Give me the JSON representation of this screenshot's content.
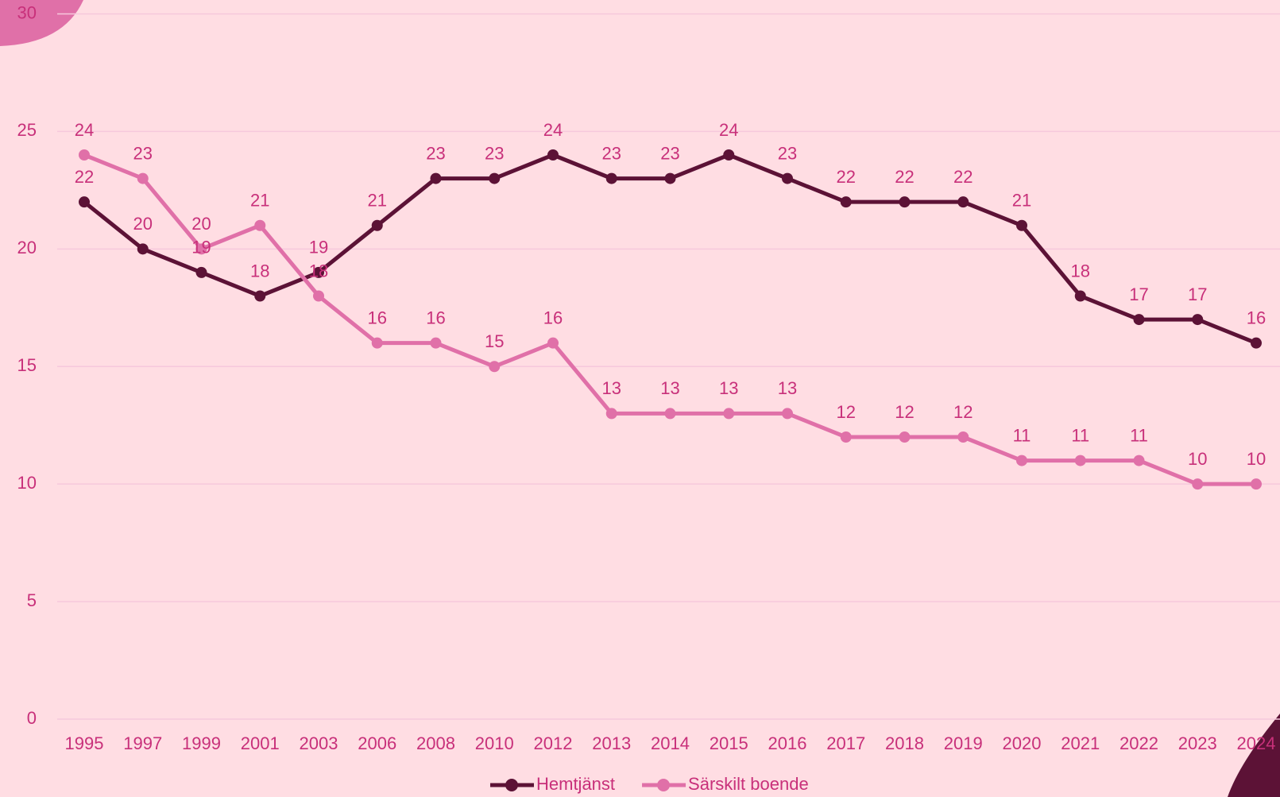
{
  "chart_data": {
    "type": "line",
    "categories": [
      "1995",
      "1997",
      "1999",
      "2001",
      "2003",
      "2006",
      "2008",
      "2010",
      "2012",
      "2013",
      "2014",
      "2015",
      "2016",
      "2017",
      "2018",
      "2019",
      "2020",
      "2021",
      "2022",
      "2023",
      "2024"
    ],
    "series": [
      {
        "name": "Hemtjänst",
        "color": "#5c1236",
        "values": [
          22,
          20,
          19,
          18,
          19,
          21,
          23,
          23,
          24,
          23,
          23,
          24,
          23,
          22,
          22,
          22,
          21,
          18,
          17,
          17,
          16
        ]
      },
      {
        "name": "Särskilt boende",
        "color": "#e070a8",
        "values": [
          24,
          23,
          20,
          21,
          18,
          16,
          16,
          15,
          16,
          13,
          13,
          13,
          13,
          12,
          12,
          12,
          11,
          11,
          11,
          10,
          10
        ]
      }
    ],
    "ylim": [
      0,
      30
    ],
    "yticks": [
      0,
      5,
      10,
      15,
      20,
      25,
      30
    ],
    "grid": true,
    "legend": "bottom"
  }
}
